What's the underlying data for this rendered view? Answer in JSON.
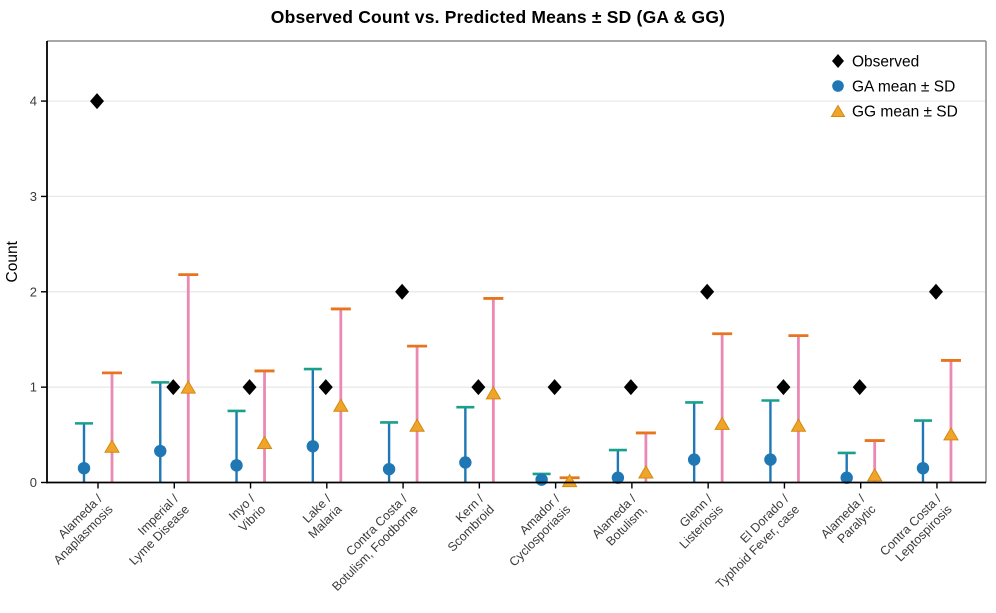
{
  "chart_data": {
    "type": "scatter",
    "title": "Observed Count vs. Predicted Means ± SD (GA & GG)",
    "xlabel": "",
    "ylabel": "Count",
    "ylim": [
      0,
      4.63
    ],
    "yticks": [
      "0",
      "1",
      "2",
      "3",
      "4"
    ],
    "grid": "horizontal-only",
    "x_tick_rotation": 45,
    "categories": [
      [
        "Alameda /",
        "Anaplasmosis"
      ],
      [
        "Imperial /",
        "Lyme Disease"
      ],
      [
        "Inyo /",
        "Vibrio"
      ],
      [
        "Lake /",
        "Malaria"
      ],
      [
        "Contra Costa /",
        "Botulism, Foodborne"
      ],
      [
        "Kern /",
        "Scombroid"
      ],
      [
        "Amador /",
        "Cyclosporiasis"
      ],
      [
        "Alameda /",
        "Botulism,"
      ],
      [
        "Glenn /",
        "Listeriosis"
      ],
      [
        "El Dorado /",
        "Typhoid Fever, case"
      ],
      [
        "Alameda /",
        "Paralytic"
      ],
      [
        "Contra Costa /",
        "Leptospirosis"
      ]
    ],
    "series": [
      {
        "name": "Observed",
        "marker": "diamond",
        "color": "#000000",
        "values": [
          4,
          1,
          1,
          1,
          2,
          1,
          1,
          1,
          2,
          1,
          1,
          2
        ]
      },
      {
        "name": "GA mean ± SD",
        "marker": "circle",
        "marker_color": "#1f77b4",
        "bar_color": "#1f77b4",
        "cap_color": "#18a08c",
        "means": [
          0.15,
          0.33,
          0.18,
          0.38,
          0.14,
          0.21,
          0.03,
          0.05,
          0.24,
          0.24,
          0.05,
          0.15
        ],
        "upper": [
          0.62,
          1.05,
          0.75,
          1.19,
          0.63,
          0.79,
          0.09,
          0.34,
          0.84,
          0.86,
          0.31,
          0.65
        ],
        "lower_clipped_at": 0
      },
      {
        "name": "GG mean ± SD",
        "marker": "triangle",
        "marker_color": "#f0a42a",
        "marker_edge": "#d28a10",
        "bar_color": "#ea8ab4",
        "cap_color": "#e8741f",
        "means": [
          0.38,
          1.0,
          0.42,
          0.81,
          0.6,
          0.94,
          0.02,
          0.11,
          0.62,
          0.6,
          0.08,
          0.51
        ],
        "upper": [
          1.15,
          2.18,
          1.17,
          1.82,
          1.43,
          1.93,
          0.05,
          0.52,
          1.56,
          1.54,
          0.44,
          1.28
        ],
        "lower_clipped_at": 0
      }
    ],
    "legend": {
      "position": "top-right-inside",
      "entries": [
        {
          "label": "Observed",
          "marker": "diamond",
          "color": "#000000"
        },
        {
          "label": "GA mean ± SD",
          "marker": "circle",
          "color": "#1f77b4"
        },
        {
          "label": "GG mean ± SD",
          "marker": "triangle",
          "color": "#f0a42a"
        }
      ]
    },
    "colors": {
      "grid": "#e7e7e7",
      "spine_dark": "#000000",
      "spine_light": "#8a8a8a",
      "tick_label": "#3a3a3a",
      "background": "#ffffff"
    }
  }
}
